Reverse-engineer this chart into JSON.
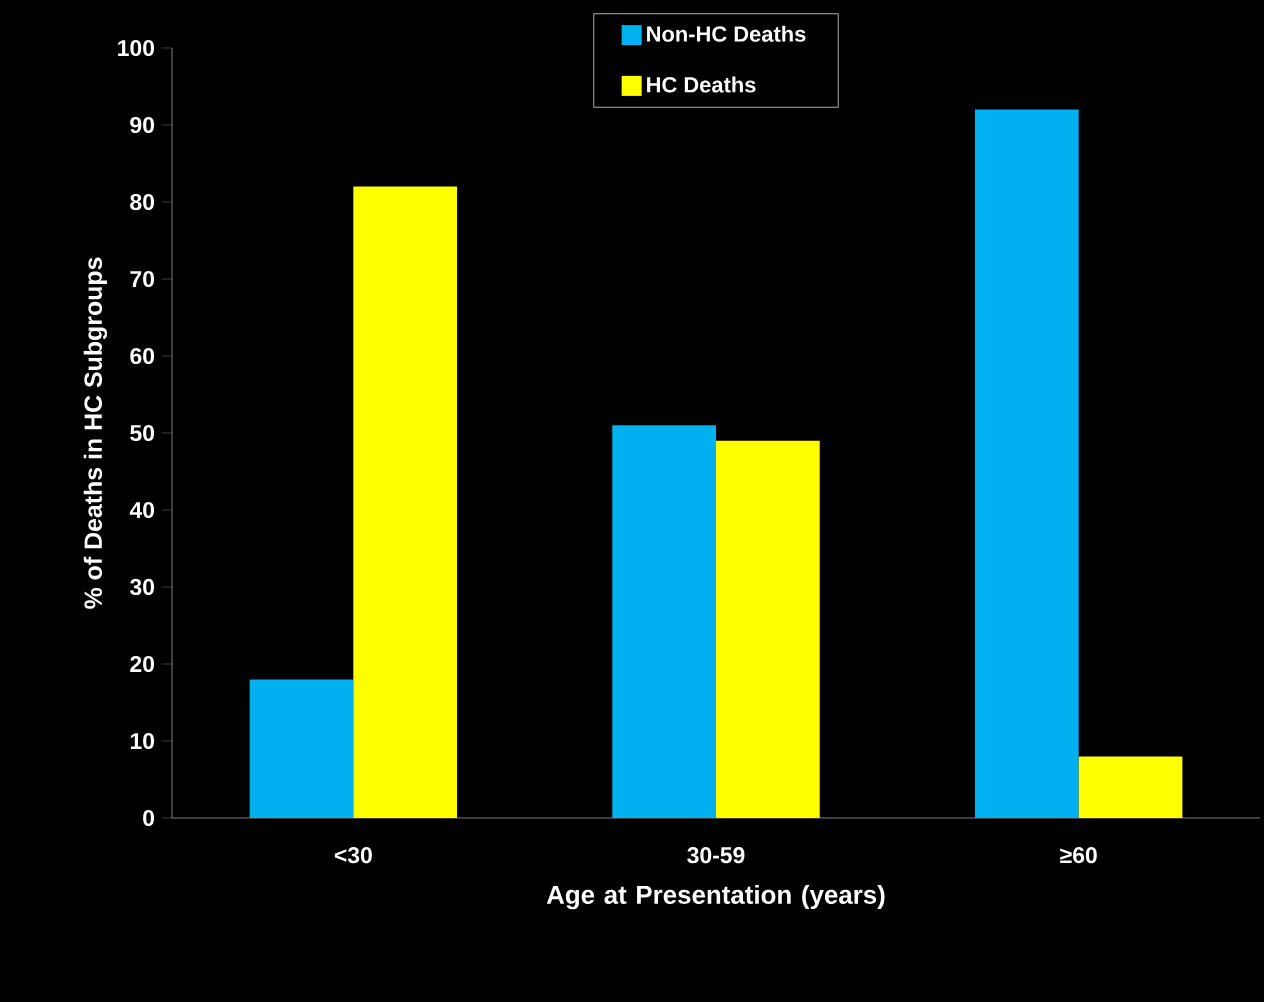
{
  "chart_data": {
    "type": "bar",
    "xlabel": "Age at Presentation (years)",
    "ylabel": "% of Deaths in HC Subgroups",
    "categories": [
      "<30",
      "30-59",
      "≥60"
    ],
    "series": [
      {
        "name": "Non-HC Deaths",
        "color": "#00b0f0",
        "values": [
          18,
          51,
          92
        ]
      },
      {
        "name": "HC Deaths",
        "color": "#ffff00",
        "values": [
          82,
          49,
          8
        ]
      }
    ],
    "ylim": [
      0,
      100
    ],
    "yticks": [
      0,
      10,
      20,
      30,
      40,
      50,
      60,
      70,
      80,
      90,
      100
    ],
    "grid": false,
    "legend": "top"
  }
}
